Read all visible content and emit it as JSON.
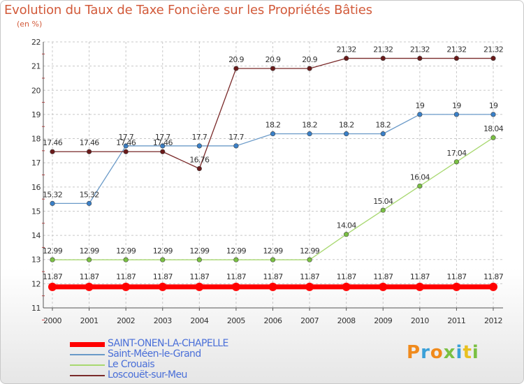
{
  "title": "Evolution du Taux de Taxe Foncière sur les Propriétés Bâties",
  "unit": "(en %)",
  "logo": {
    "text": "Proxiti",
    "colors": [
      "#f08a1c",
      "#3aa0d8",
      "#f08a1c",
      "#7ac043",
      "#3aa0d8",
      "#e8c020",
      "#7ac043"
    ]
  },
  "chart_data": {
    "type": "line",
    "x": [
      2000,
      2001,
      2002,
      2003,
      2004,
      2005,
      2006,
      2007,
      2008,
      2009,
      2010,
      2011,
      2012
    ],
    "xlabel": "",
    "ylabel": "",
    "ylim": [
      11,
      22
    ],
    "yticks": [
      11,
      12,
      13,
      14,
      15,
      16,
      17,
      18,
      19,
      20,
      21,
      22
    ],
    "grid": "horizontal dashed",
    "legend_position": "bottom",
    "series": [
      {
        "name": "SAINT-ONEN-LA-CHAPELLE",
        "color": "#ff0000",
        "point_color": "#ff0000",
        "thick": true,
        "values": [
          11.87,
          11.87,
          11.87,
          11.87,
          11.87,
          11.87,
          11.87,
          11.87,
          11.87,
          11.87,
          11.87,
          11.87,
          11.87
        ],
        "labels": [
          "11.87",
          "11.87",
          "11.87",
          "11.87",
          "11.87",
          "11.87",
          "11.87",
          "11.87",
          "11.87",
          "11.87",
          "11.87",
          "11.87",
          "11.87"
        ]
      },
      {
        "name": "Saint-Méen-le-Grand",
        "color": "#6a9ac8",
        "point_color": "#3a80c8",
        "values": [
          15.32,
          15.32,
          17.7,
          17.7,
          17.7,
          17.7,
          18.2,
          18.2,
          18.2,
          18.2,
          19,
          19,
          19
        ],
        "labels": [
          "15.32",
          "15.32",
          "17.7",
          "17.7",
          "17.7",
          "17.7",
          "18.2",
          "18.2",
          "18.2",
          "18.2",
          "19",
          "19",
          "19"
        ]
      },
      {
        "name": "Le Crouais",
        "color": "#a8d870",
        "point_color": "#7ac043",
        "values": [
          12.99,
          12.99,
          12.99,
          12.99,
          12.99,
          12.99,
          12.99,
          12.99,
          14.04,
          15.04,
          16.04,
          17.04,
          18.04
        ],
        "labels": [
          "12.99",
          "12.99",
          "12.99",
          "12.99",
          "12.99",
          "12.99",
          "12.99",
          "12.99",
          "14.04",
          "15.04",
          "16.04",
          "17.04",
          "18.04"
        ]
      },
      {
        "name": "Loscouët-sur-Meu",
        "color": "#7a2a2a",
        "point_color": "#6a1a1a",
        "values": [
          17.46,
          17.46,
          17.46,
          17.46,
          16.76,
          20.9,
          20.9,
          20.9,
          21.32,
          21.32,
          21.32,
          21.32,
          21.32
        ],
        "labels": [
          "17.46",
          "17.46",
          "17.46",
          "17.46",
          "16.76",
          "20.9",
          "20.9",
          "20.9",
          "21.32",
          "21.32",
          "21.32",
          "21.32",
          "21.32"
        ]
      }
    ]
  }
}
